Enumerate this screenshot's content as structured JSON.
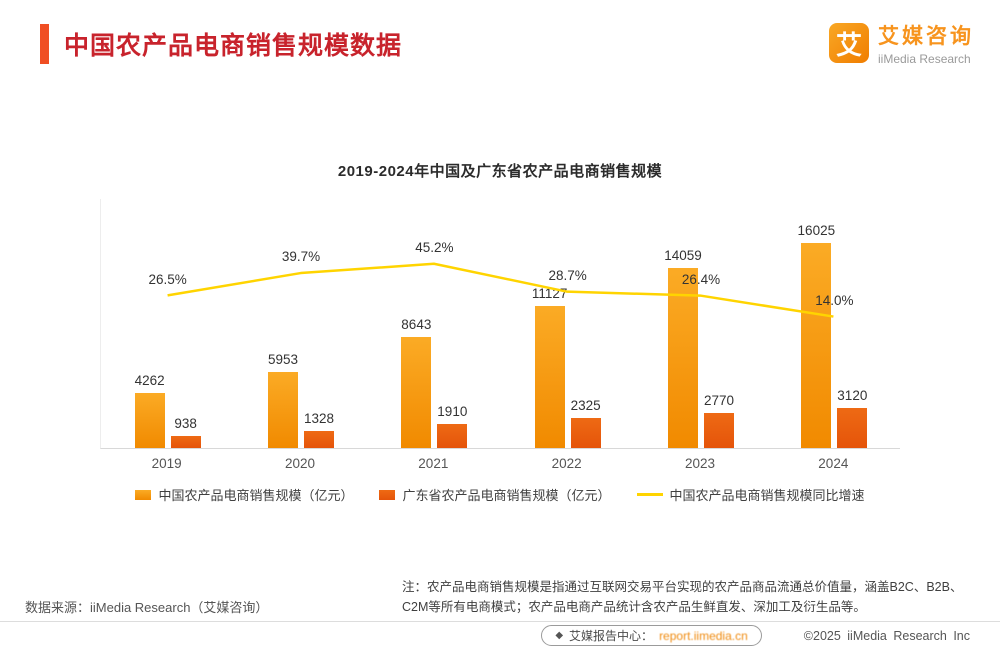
{
  "header": {
    "title": "中国农产品电商销售规模数据",
    "logo": {
      "mark": "艾",
      "name_cn": "艾媒咨询",
      "name_en": "iiMedia Research"
    }
  },
  "chart_data": {
    "type": "bar+line",
    "title": "2019-2024年中国及广东省农产品电商销售规模",
    "categories": [
      "2019",
      "2020",
      "2021",
      "2022",
      "2023",
      "2024"
    ],
    "series": [
      {
        "name": "中国农产品电商销售规模（亿元）",
        "type": "bar",
        "color_top": "#fbab25",
        "color_bottom": "#f18a00",
        "values": [
          4262,
          5953,
          8643,
          11127,
          14059,
          16025
        ]
      },
      {
        "name": "广东省农产品电商销售规模（亿元）",
        "type": "bar",
        "color_top": "#ee6a14",
        "color_bottom": "#e5540a",
        "values": [
          938,
          1328,
          1910,
          2325,
          2770,
          3120
        ]
      },
      {
        "name": "中国农产品电商销售规模同比增速",
        "type": "line",
        "color": "#ffd400",
        "values_pct": [
          26.5,
          39.7,
          45.2,
          28.7,
          26.4,
          14.0
        ],
        "labels": [
          "26.5%",
          "39.7%",
          "45.2%",
          "28.7%",
          "26.4%",
          "14.0%"
        ]
      }
    ],
    "ylim": [
      0,
      16500
    ],
    "grid": false,
    "legend_position": "bottom"
  },
  "notes": {
    "source": "数据来源：iiMedia Research（艾媒咨询）",
    "note": "注：农产品电商销售规模是指通过互联网交易平台实现的农产品商品流通总价值量，涵盖B2C、B2B、C2M等所有电商模式；农产品电商产品统计含农产品生鲜直发、深加工及衍生品等。"
  },
  "footer": {
    "report_center": "艾媒报告中心：",
    "report_url": "report.iimedia.cn",
    "copyright": "©2025  iiMedia Research  Inc"
  },
  "colors": {
    "title_red": "#c8232c",
    "accent_orange": "#f04e23",
    "brand_orange": "#f7941e",
    "note_underline": "#f7a01d"
  }
}
